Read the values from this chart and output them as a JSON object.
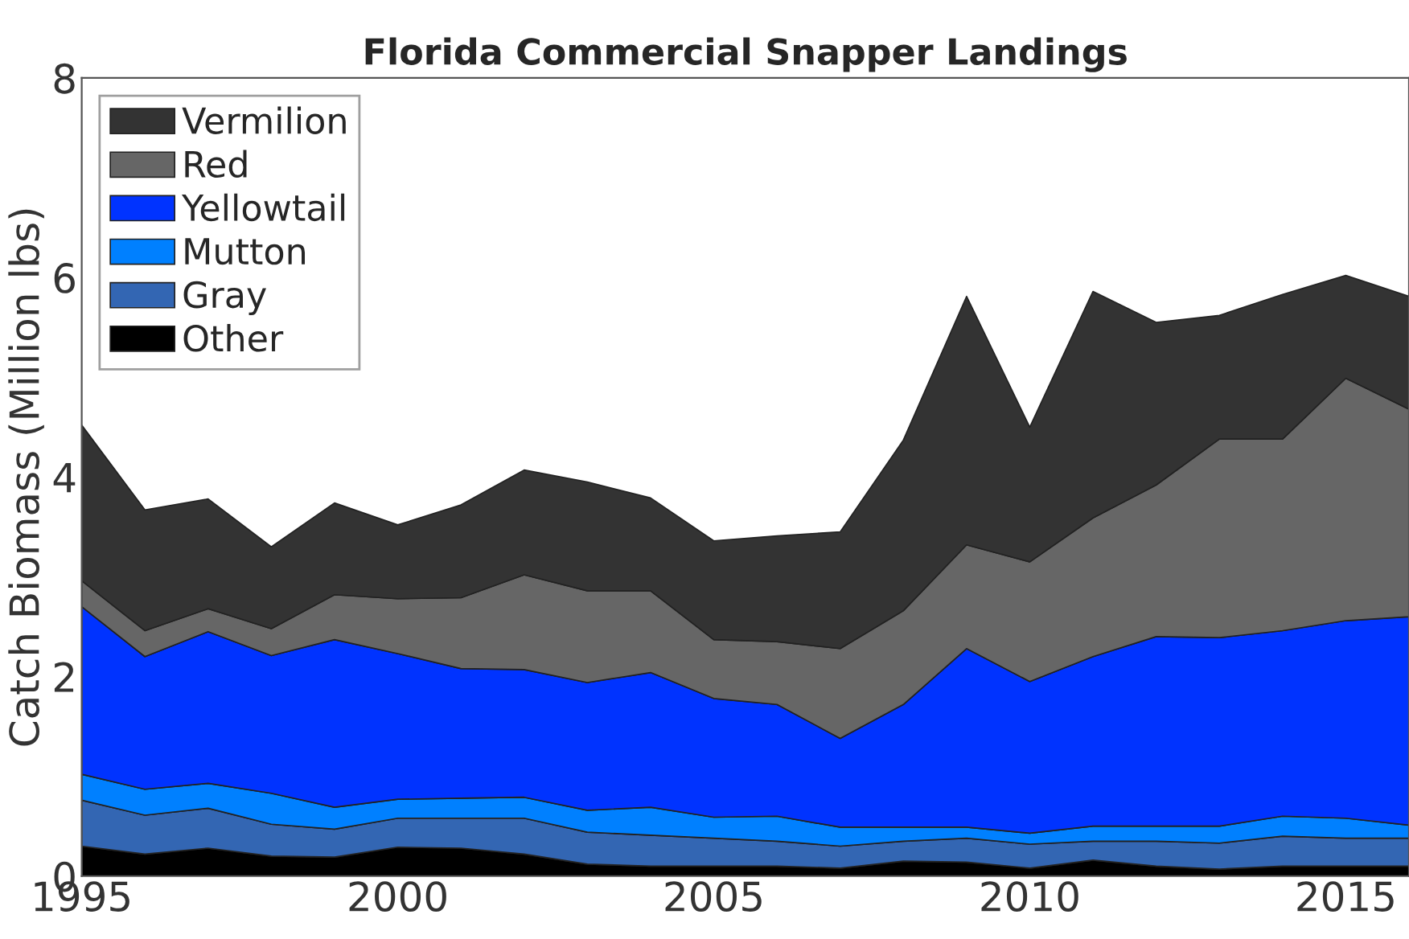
{
  "chart_data": {
    "type": "area",
    "stacked": true,
    "title": "Florida Commercial Snapper Landings",
    "ylabel": "Catch Biomass (Million lbs)",
    "x": [
      1995,
      1996,
      1997,
      1998,
      1999,
      2000,
      2001,
      2002,
      2003,
      2004,
      2005,
      2006,
      2007,
      2008,
      2009,
      2010,
      2011,
      2012,
      2013,
      2014,
      2015,
      2016
    ],
    "series": [
      {
        "name": "Other",
        "color": "#000000",
        "values": [
          0.3,
          0.22,
          0.28,
          0.2,
          0.19,
          0.29,
          0.28,
          0.22,
          0.12,
          0.1,
          0.1,
          0.1,
          0.08,
          0.15,
          0.14,
          0.08,
          0.16,
          0.1,
          0.07,
          0.1,
          0.1,
          0.1
        ]
      },
      {
        "name": "Gray",
        "color": "#3366b3",
        "values": [
          0.46,
          0.39,
          0.4,
          0.32,
          0.28,
          0.29,
          0.3,
          0.36,
          0.32,
          0.31,
          0.28,
          0.25,
          0.22,
          0.2,
          0.24,
          0.24,
          0.19,
          0.25,
          0.26,
          0.3,
          0.28,
          0.28
        ]
      },
      {
        "name": "Mutton",
        "color": "#0080ff",
        "values": [
          0.26,
          0.26,
          0.25,
          0.31,
          0.22,
          0.19,
          0.2,
          0.21,
          0.22,
          0.28,
          0.21,
          0.25,
          0.19,
          0.14,
          0.11,
          0.11,
          0.15,
          0.15,
          0.17,
          0.2,
          0.2,
          0.13
        ]
      },
      {
        "name": "Yellowtail",
        "color": "#0033ff",
        "values": [
          1.68,
          1.33,
          1.52,
          1.38,
          1.68,
          1.46,
          1.3,
          1.28,
          1.28,
          1.35,
          1.19,
          1.12,
          0.89,
          1.23,
          1.79,
          1.52,
          1.7,
          1.9,
          1.89,
          1.86,
          1.98,
          2.09
        ]
      },
      {
        "name": "Red",
        "color": "#666666",
        "values": [
          0.26,
          0.26,
          0.23,
          0.27,
          0.45,
          0.55,
          0.71,
          0.95,
          0.92,
          0.82,
          0.59,
          0.63,
          0.9,
          0.94,
          1.04,
          1.2,
          1.39,
          1.52,
          1.99,
          1.92,
          2.43,
          2.08
        ]
      },
      {
        "name": "Vermilion",
        "color": "#333333",
        "values": [
          1.56,
          1.21,
          1.1,
          0.82,
          0.92,
          0.74,
          0.93,
          1.05,
          1.09,
          0.93,
          0.99,
          1.06,
          1.17,
          1.71,
          2.49,
          1.35,
          2.27,
          1.63,
          1.24,
          1.45,
          1.03,
          1.13
        ]
      }
    ],
    "xlim": [
      1995,
      2016
    ],
    "xticks": [
      1995,
      2000,
      2005,
      2010,
      2015
    ],
    "ylim": [
      0,
      8
    ],
    "yticks": [
      0,
      2,
      4,
      6,
      8
    ],
    "grid": false,
    "legend": "top left"
  }
}
